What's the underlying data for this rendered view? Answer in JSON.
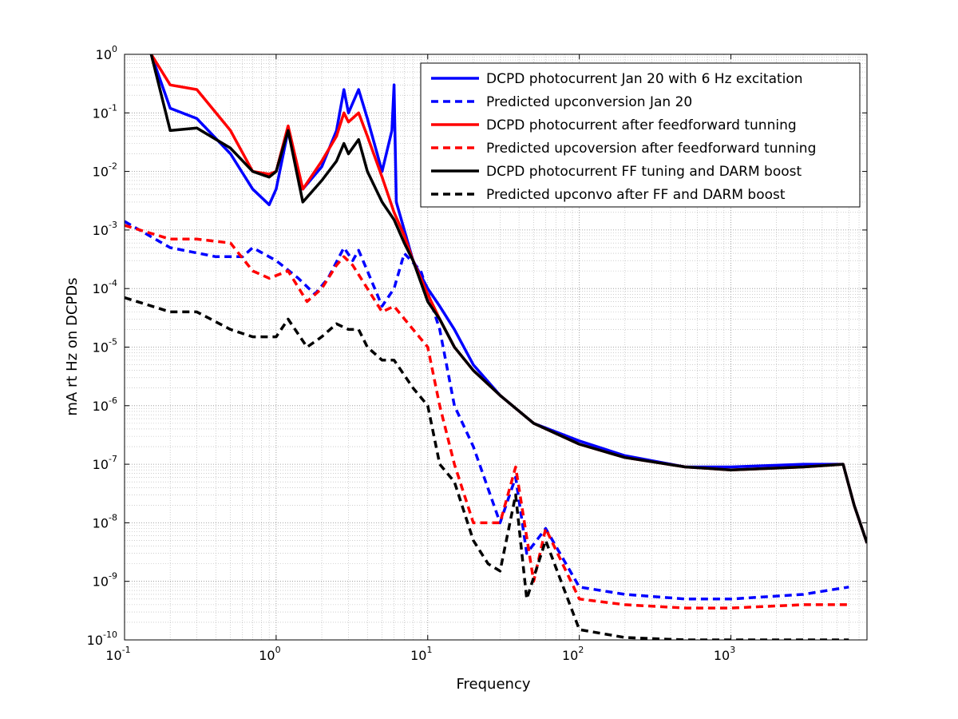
{
  "chart_data": {
    "type": "line",
    "title": "",
    "xlabel": "Frequency",
    "ylabel": "mA rt Hz on DCPDs",
    "xscale": "log",
    "yscale": "log",
    "xlim": [
      0.1,
      7900
    ],
    "ylim": [
      1e-10,
      1
    ],
    "grid": true,
    "legend_position": "top-right",
    "x_ticks": [
      {
        "base": "10",
        "exp": "-1"
      },
      {
        "base": "10",
        "exp": "0"
      },
      {
        "base": "10",
        "exp": "1"
      },
      {
        "base": "10",
        "exp": "2"
      },
      {
        "base": "10",
        "exp": "3"
      }
    ],
    "y_ticks": [
      {
        "base": "10",
        "exp": "0"
      },
      {
        "base": "10",
        "exp": "-1"
      },
      {
        "base": "10",
        "exp": "-2"
      },
      {
        "base": "10",
        "exp": "-3"
      },
      {
        "base": "10",
        "exp": "-4"
      },
      {
        "base": "10",
        "exp": "-5"
      },
      {
        "base": "10",
        "exp": "-6"
      },
      {
        "base": "10",
        "exp": "-7"
      },
      {
        "base": "10",
        "exp": "-8"
      },
      {
        "base": "10",
        "exp": "-9"
      },
      {
        "base": "10",
        "exp": "-10"
      }
    ],
    "series": [
      {
        "name": "DCPD photocurrent Jan 20 with 6 Hz excitation",
        "color": "#0000ff",
        "dash": "solid",
        "x": [
          0.15,
          0.2,
          0.3,
          0.5,
          0.7,
          0.9,
          1.0,
          1.2,
          1.5,
          2.0,
          2.5,
          2.8,
          3.0,
          3.5,
          4.0,
          5.0,
          5.8,
          6.0,
          6.2,
          7,
          8,
          10,
          12,
          15,
          20,
          30,
          50,
          100,
          200,
          500,
          1000,
          3000,
          5500,
          6500,
          7900
        ],
        "y": [
          1.0,
          0.12,
          0.08,
          0.02,
          0.005,
          0.0027,
          0.005,
          0.05,
          0.005,
          0.012,
          0.05,
          0.25,
          0.1,
          0.25,
          0.08,
          0.01,
          0.05,
          0.3,
          0.003,
          0.001,
          0.0003,
          0.0001,
          5e-05,
          2e-05,
          5e-06,
          1.5e-06,
          5e-07,
          2.5e-07,
          1.4e-07,
          9e-08,
          9e-08,
          1e-07,
          1e-07,
          2e-08,
          4.5e-09
        ]
      },
      {
        "name": "Predicted upconversion Jan 20",
        "color": "#0000ff",
        "dash": "dashed",
        "x": [
          0.1,
          0.2,
          0.4,
          0.6,
          0.7,
          1.0,
          1.4,
          1.8,
          2.2,
          2.8,
          3.2,
          3.5,
          4.0,
          5.0,
          6.0,
          7.0,
          9.0,
          12,
          15,
          20,
          30,
          38,
          45,
          60,
          100,
          200,
          500,
          1000,
          3000,
          6000
        ],
        "y": [
          0.0014,
          0.0005,
          0.00035,
          0.00035,
          0.0005,
          0.0003,
          0.00015,
          8e-05,
          0.00015,
          0.0005,
          0.0003,
          0.00045,
          0.0002,
          5e-05,
          0.0001,
          0.0004,
          0.0002,
          2e-05,
          1e-06,
          2e-07,
          1e-08,
          6e-08,
          3e-09,
          8e-09,
          8e-10,
          6e-10,
          5e-10,
          5e-10,
          6e-10,
          8e-10
        ]
      },
      {
        "name": "DCPD photocurrent after feedforward tunning",
        "color": "#ff0000",
        "dash": "solid",
        "x": [
          0.15,
          0.2,
          0.3,
          0.5,
          0.7,
          0.9,
          1.0,
          1.2,
          1.5,
          2.0,
          2.5,
          2.8,
          3.0,
          3.5,
          4.0,
          5.0,
          6.0,
          7,
          8,
          10,
          12,
          15,
          20,
          30,
          50,
          100,
          200,
          500,
          1000,
          3000,
          5500,
          6500,
          7900
        ],
        "y": [
          1.0,
          0.3,
          0.25,
          0.05,
          0.01,
          0.009,
          0.01,
          0.06,
          0.005,
          0.015,
          0.04,
          0.1,
          0.07,
          0.1,
          0.04,
          0.008,
          0.002,
          0.0008,
          0.0003,
          8e-05,
          3e-05,
          1e-05,
          4e-06,
          1.5e-06,
          5e-07,
          2.2e-07,
          1.3e-07,
          9e-08,
          8e-08,
          9e-08,
          1e-07,
          2e-08,
          4.5e-09
        ]
      },
      {
        "name": "Predicted upcoversion after feedforward tunning",
        "color": "#ff0000",
        "dash": "dashed",
        "x": [
          0.1,
          0.2,
          0.3,
          0.5,
          0.7,
          0.9,
          1.2,
          1.6,
          2.0,
          2.5,
          2.8,
          3.2,
          4.0,
          5.0,
          6.0,
          8.0,
          10,
          12,
          15,
          20,
          30,
          38,
          50,
          60,
          100,
          200,
          500,
          1000,
          3000,
          6000
        ],
        "y": [
          0.0012,
          0.0007,
          0.0007,
          0.0006,
          0.0002,
          0.00015,
          0.0002,
          6e-05,
          0.0001,
          0.00025,
          0.00035,
          0.00025,
          0.0001,
          4e-05,
          5e-05,
          2e-05,
          1e-05,
          1e-06,
          1e-07,
          1e-08,
          1e-08,
          9e-08,
          1e-09,
          8e-09,
          5e-10,
          4e-10,
          3.5e-10,
          3.5e-10,
          4e-10,
          4e-10
        ]
      },
      {
        "name": "DCPD photocurrent FF tuning and DARM boost",
        "color": "#000000",
        "dash": "solid",
        "x": [
          0.15,
          0.2,
          0.3,
          0.5,
          0.7,
          0.9,
          1.0,
          1.2,
          1.5,
          2.0,
          2.5,
          2.8,
          3.0,
          3.5,
          4.0,
          5.0,
          6.0,
          7,
          8,
          10,
          12,
          15,
          20,
          30,
          50,
          100,
          200,
          500,
          1000,
          3000,
          5500,
          6500,
          7900
        ],
        "y": [
          1.0,
          0.05,
          0.055,
          0.025,
          0.01,
          0.008,
          0.01,
          0.05,
          0.003,
          0.007,
          0.015,
          0.03,
          0.02,
          0.035,
          0.01,
          0.003,
          0.0015,
          0.0006,
          0.0003,
          6e-05,
          3e-05,
          1e-05,
          4e-06,
          1.5e-06,
          5e-07,
          2.2e-07,
          1.3e-07,
          9e-08,
          8e-08,
          9e-08,
          1e-07,
          2e-08,
          4.5e-09
        ]
      },
      {
        "name": "Predicted upconvo after FF and DARM boost",
        "color": "#000000",
        "dash": "dashed",
        "x": [
          0.1,
          0.2,
          0.3,
          0.5,
          0.7,
          1.0,
          1.2,
          1.6,
          2.0,
          2.5,
          3.0,
          3.5,
          4.0,
          5.0,
          6.0,
          8.0,
          10,
          12,
          15,
          20,
          25,
          30,
          38,
          45,
          60,
          100,
          200,
          500,
          1000,
          3000,
          6000
        ],
        "y": [
          7e-05,
          4e-05,
          4e-05,
          2e-05,
          1.5e-05,
          1.5e-05,
          3e-05,
          1e-05,
          1.5e-05,
          2.5e-05,
          2e-05,
          2e-05,
          1e-05,
          6e-06,
          6e-06,
          2e-06,
          1e-06,
          1e-07,
          5e-08,
          5e-09,
          2e-09,
          1.5e-09,
          3e-08,
          5e-10,
          5e-09,
          1.5e-10,
          1.1e-10,
          1e-10,
          1e-10,
          1e-10,
          1e-10
        ]
      }
    ]
  }
}
